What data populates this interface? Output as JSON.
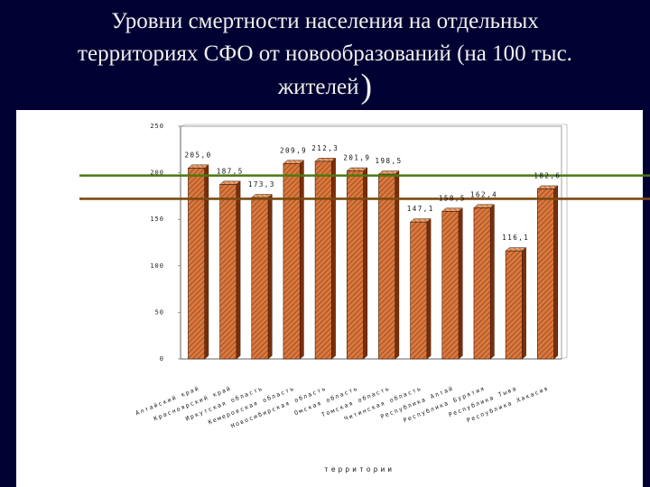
{
  "slide": {
    "title_line1": "Уровни смертности населения на отдельных",
    "title_line2": "территориях СФО от новообразований (на 100 тыс.",
    "title_line3": "жителей",
    "title_paren": ")"
  },
  "colors": {
    "background": "#000033",
    "bar_fill": "#d9783e",
    "bar_hatch": "#8a3a12",
    "ref_line_green": "#4a7a10",
    "ref_line_brown": "#7a4a10"
  },
  "chart_data": {
    "type": "bar",
    "title": "",
    "xlabel": "территории",
    "ylabel": "",
    "ylim": [
      0,
      250
    ],
    "yticks": [
      0,
      50,
      100,
      150,
      200,
      250
    ],
    "grid": false,
    "legend": "none",
    "categories": [
      "Алтайский край",
      "Красноярский край",
      "Иркутская область",
      "Кемеровская область",
      "Новосибирская область",
      "Омская область",
      "Томская область",
      "Читинская область",
      "Республика Алтай",
      "Республика Бурятия",
      "Республика Тыва",
      "Республика Хакасия"
    ],
    "values": [
      205.0,
      187.5,
      173.3,
      209.9,
      212.3,
      201.9,
      198.5,
      147.1,
      158.5,
      162.4,
      116.1,
      182.6
    ],
    "value_labels": [
      "205,0",
      "187,5",
      "173,3",
      "209,9",
      "212,3",
      "201,9",
      "198,5",
      "147,1",
      "158,5",
      "162,4",
      "116,1",
      "182,6"
    ],
    "reference_lines": [
      {
        "value": 199,
        "color": "#4a7a10"
      },
      {
        "value": 174,
        "color": "#7a4a10"
      }
    ]
  }
}
